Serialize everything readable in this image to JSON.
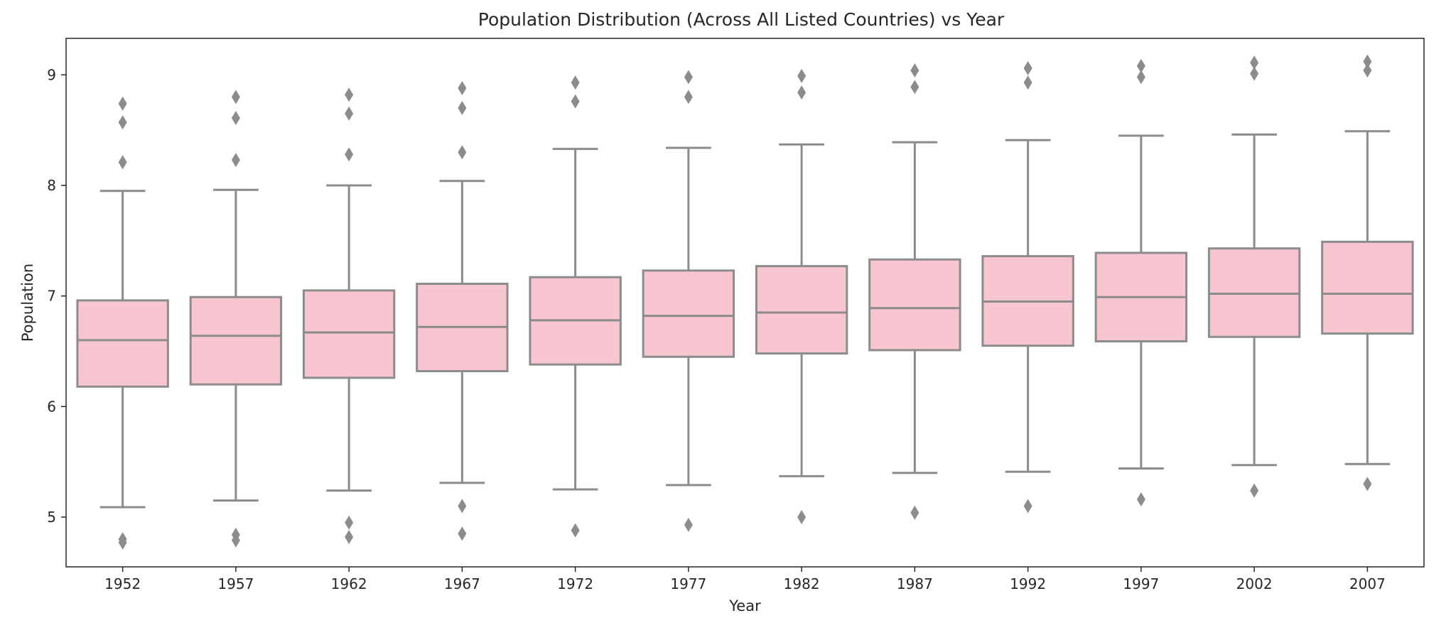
{
  "chart_data": {
    "type": "box",
    "title": "Population Distribution (Across All Listed Countries) vs Year",
    "xlabel": "Year",
    "ylabel": "Population",
    "ylim": [
      4.55,
      9.33
    ],
    "yticks": [
      5,
      6,
      7,
      8,
      9
    ],
    "grid": false,
    "colors": {
      "box_fill": "#f7c6d0",
      "line": "#8c8c8c",
      "frame": "#262626"
    },
    "categories": [
      "1952",
      "1957",
      "1962",
      "1967",
      "1972",
      "1977",
      "1982",
      "1987",
      "1992",
      "1997",
      "2002",
      "2007"
    ],
    "boxes": [
      {
        "year": "1952",
        "whisker_low": 5.09,
        "q1": 6.18,
        "median": 6.6,
        "q3": 6.96,
        "whisker_high": 7.95,
        "outliers": [
          4.77,
          4.8,
          8.21,
          8.57,
          8.74
        ]
      },
      {
        "year": "1957",
        "whisker_low": 5.15,
        "q1": 6.2,
        "median": 6.64,
        "q3": 6.99,
        "whisker_high": 7.96,
        "outliers": [
          4.79,
          4.84,
          8.23,
          8.61,
          8.8
        ]
      },
      {
        "year": "1962",
        "whisker_low": 5.24,
        "q1": 6.26,
        "median": 6.67,
        "q3": 7.05,
        "whisker_high": 8.0,
        "outliers": [
          4.82,
          4.95,
          8.28,
          8.65,
          8.82
        ]
      },
      {
        "year": "1967",
        "whisker_low": 5.31,
        "q1": 6.32,
        "median": 6.72,
        "q3": 7.11,
        "whisker_high": 8.04,
        "outliers": [
          4.85,
          5.1,
          8.3,
          8.7,
          8.88
        ]
      },
      {
        "year": "1972",
        "whisker_low": 5.25,
        "q1": 6.38,
        "median": 6.78,
        "q3": 7.17,
        "whisker_high": 8.33,
        "outliers": [
          4.88,
          8.76,
          8.93
        ]
      },
      {
        "year": "1977",
        "whisker_low": 5.29,
        "q1": 6.45,
        "median": 6.82,
        "q3": 7.23,
        "whisker_high": 8.34,
        "outliers": [
          4.93,
          8.8,
          8.98
        ]
      },
      {
        "year": "1982",
        "whisker_low": 5.37,
        "q1": 6.48,
        "median": 6.85,
        "q3": 7.27,
        "whisker_high": 8.37,
        "outliers": [
          5.0,
          8.84,
          8.99
        ]
      },
      {
        "year": "1987",
        "whisker_low": 5.4,
        "q1": 6.51,
        "median": 6.89,
        "q3": 7.33,
        "whisker_high": 8.39,
        "outliers": [
          5.04,
          8.89,
          9.04
        ]
      },
      {
        "year": "1992",
        "whisker_low": 5.41,
        "q1": 6.55,
        "median": 6.95,
        "q3": 7.36,
        "whisker_high": 8.41,
        "outliers": [
          5.1,
          8.93,
          9.06
        ]
      },
      {
        "year": "1997",
        "whisker_low": 5.44,
        "q1": 6.59,
        "median": 6.99,
        "q3": 7.39,
        "whisker_high": 8.45,
        "outliers": [
          5.16,
          8.98,
          9.08
        ]
      },
      {
        "year": "2002",
        "whisker_low": 5.47,
        "q1": 6.63,
        "median": 7.02,
        "q3": 7.43,
        "whisker_high": 8.46,
        "outliers": [
          5.24,
          9.01,
          9.11
        ]
      },
      {
        "year": "2007",
        "whisker_low": 5.48,
        "q1": 6.66,
        "median": 7.02,
        "q3": 7.49,
        "whisker_high": 8.49,
        "outliers": [
          5.3,
          9.04,
          9.12
        ]
      }
    ]
  }
}
